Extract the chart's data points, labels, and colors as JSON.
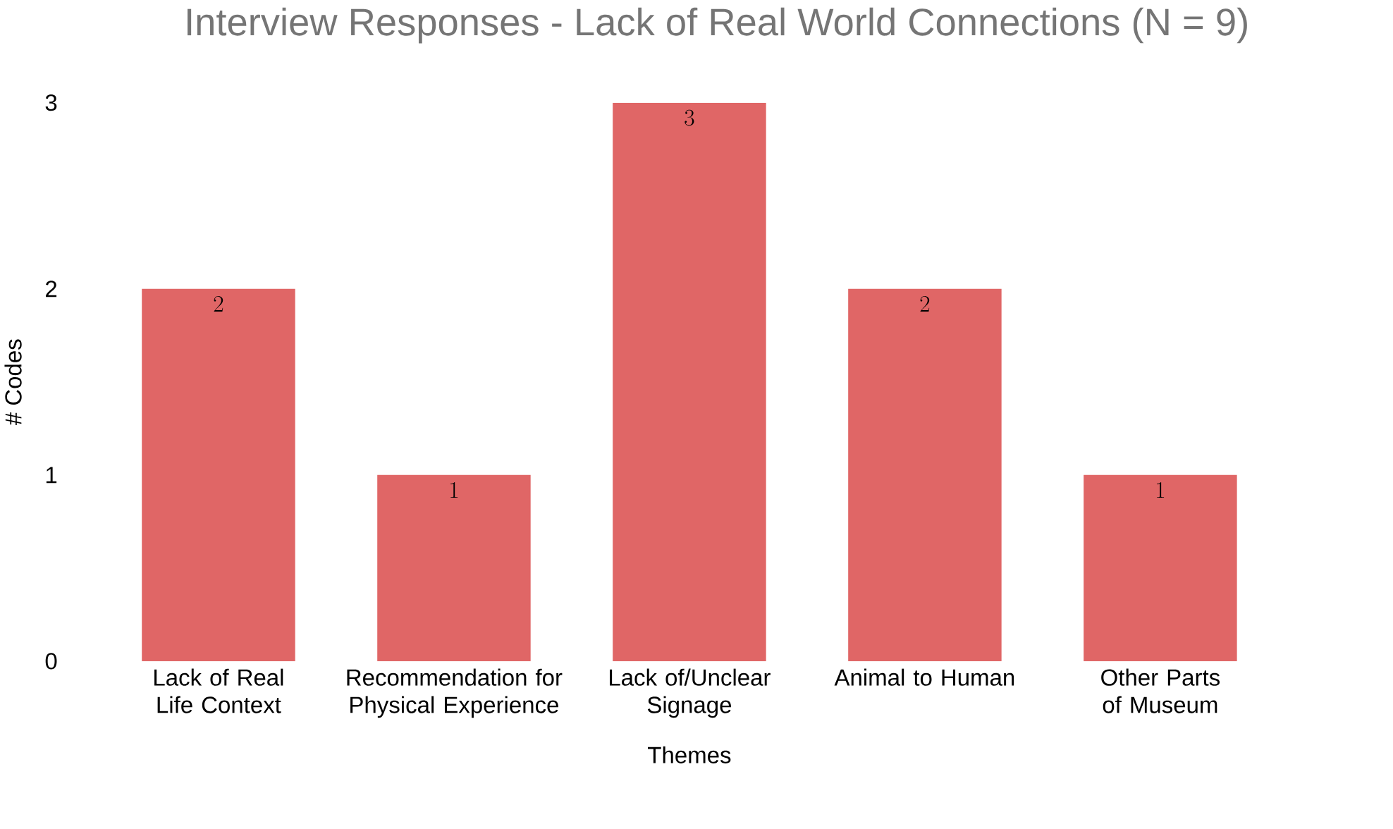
{
  "chart_data": {
    "type": "bar",
    "title": "Interview Responses - Lack of Real World Connections (N = 9)",
    "xlabel": "Themes",
    "ylabel": "# Codes",
    "categories": [
      "Lack of Real Life Context",
      "Recommendation for Physical Experience",
      "Lack of/Unclear Signage",
      "Animal to Human",
      "Other Parts of Museum"
    ],
    "values": [
      2,
      1,
      3,
      2,
      1
    ],
    "color": "#e06666",
    "ylim": [
      0,
      3
    ],
    "yticks": [
      0,
      1,
      2,
      3
    ],
    "grid": false,
    "data_labels": true
  }
}
